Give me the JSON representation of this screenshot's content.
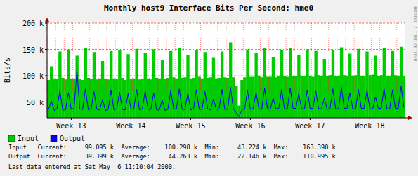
{
  "chart_data": {
    "type": "area",
    "title": "Monthly host9 Interface Bits Per Second: hme0",
    "y_label": "Bits/s",
    "ylim": [
      20000,
      200000
    ],
    "yticks": [
      {
        "value": 50000,
        "label": "50 k"
      },
      {
        "value": 100000,
        "label": "100 k"
      },
      {
        "value": 150000,
        "label": "150 k"
      },
      {
        "value": 200000,
        "label": "200 k"
      }
    ],
    "grid": true,
    "legend": "bottom",
    "categories": [
      null,
      null,
      null,
      null,
      null,
      null,
      null,
      null,
      "Week 13",
      null,
      null,
      null,
      null,
      null,
      null,
      null,
      null,
      null,
      null,
      null,
      null,
      null,
      null,
      null,
      null,
      null,
      null,
      null,
      null,
      "Week 14",
      null,
      null,
      null,
      null,
      null,
      null,
      null,
      null,
      null,
      null,
      null,
      null,
      null,
      null,
      null,
      null,
      null,
      null,
      null,
      null,
      "Week 15",
      null,
      null,
      null,
      null,
      null,
      null,
      null,
      null,
      null,
      null,
      null,
      null,
      null,
      null,
      null,
      null,
      null,
      null,
      null,
      null,
      "Week 16",
      null,
      null,
      null,
      null,
      null,
      null,
      null,
      null,
      null,
      null,
      null,
      null,
      null,
      null,
      null,
      null,
      null,
      null,
      null,
      null,
      "Week 17",
      null,
      null,
      null,
      null,
      null,
      null,
      null,
      null,
      null,
      null,
      null,
      null,
      null,
      null,
      null,
      null,
      null,
      null,
      null,
      null,
      "Week 18",
      null,
      null,
      null,
      null,
      null,
      null,
      null,
      null,
      null,
      null,
      null,
      null
    ],
    "series": [
      {
        "name": "Input",
        "type": "area",
        "color": "#00cc00",
        "values": [
          92000,
          118000,
          95000,
          94000,
          146000,
          96000,
          93000,
          150000,
          95000,
          95000,
          138000,
          94000,
          92000,
          152000,
          96000,
          94000,
          145000,
          93000,
          95000,
          128000,
          94000,
          93000,
          147000,
          95000,
          94000,
          149000,
          96000,
          92000,
          141000,
          94000,
          95000,
          151000,
          93000,
          94000,
          143000,
          95000,
          93000,
          150000,
          96000,
          95000,
          130000,
          94000,
          96000,
          147000,
          97000,
          95000,
          152000,
          96000,
          97000,
          139000,
          95000,
          96000,
          149000,
          98000,
          95000,
          145000,
          96000,
          97000,
          134000,
          95000,
          96000,
          146000,
          97000,
          96000,
          163390,
          97000,
          80000,
          43224,
          92000,
          97000,
          150000,
          98000,
          98000,
          144000,
          99000,
          97000,
          152000,
          98000,
          98000,
          136000,
          97000,
          99000,
          148000,
          100000,
          98000,
          153000,
          99000,
          100000,
          140000,
          99000,
          99000,
          150000,
          100000,
          98000,
          147000,
          101000,
          100000,
          132000,
          99000,
          101000,
          149000,
          100000,
          99000,
          154000,
          101000,
          100000,
          142000,
          99000,
          101000,
          151000,
          100000,
          100000,
          146000,
          101000,
          102000,
          138000,
          100000,
          101000,
          152000,
          100000,
          100000,
          147000,
          101000,
          99000,
          155000,
          99095
        ]
      },
      {
        "name": "Output",
        "type": "line",
        "color": "#0000ff",
        "values": [
          36000,
          52000,
          34000,
          37000,
          72000,
          35000,
          35000,
          68000,
          36000,
          38000,
          110995,
          37000,
          36000,
          75000,
          35000,
          37000,
          70000,
          36000,
          35000,
          55000,
          34000,
          36000,
          73000,
          35000,
          37000,
          69000,
          36000,
          35000,
          66000,
          37000,
          36000,
          74000,
          35000,
          37000,
          71000,
          36000,
          36000,
          68000,
          35000,
          35000,
          54000,
          34000,
          36000,
          72000,
          37000,
          37000,
          75000,
          36000,
          36000,
          67000,
          35000,
          37000,
          73000,
          36000,
          36000,
          70000,
          37000,
          35000,
          56000,
          36000,
          37000,
          74000,
          36000,
          36000,
          78000,
          37000,
          30000,
          22146,
          35000,
          37000,
          72000,
          36000,
          38000,
          69000,
          37000,
          37000,
          76000,
          38000,
          36000,
          58000,
          37000,
          38000,
          74000,
          37000,
          37000,
          77000,
          38000,
          38000,
          66000,
          37000,
          37000,
          73000,
          38000,
          38000,
          71000,
          37000,
          37000,
          57000,
          36000,
          38000,
          75000,
          37000,
          37000,
          78000,
          38000,
          38000,
          68000,
          37000,
          37000,
          74000,
          38000,
          38000,
          72000,
          37000,
          37000,
          60000,
          38000,
          38000,
          76000,
          37000,
          37000,
          73000,
          38000,
          38000,
          80000,
          39399
        ]
      }
    ],
    "annotations": [
      "Input   Current:     99.095 k  Average:    100.298 k  Min:     43.224 k  Max:    163.390 k",
      "Output  Current:     39.399 k  Average:     44.263 k  Min:     22.146 k  Max:    110.995 k",
      "Last data entered at Sat May  6 11:10:04 2000.",
      "RRDTOOL / TOBI OETIKER"
    ]
  }
}
